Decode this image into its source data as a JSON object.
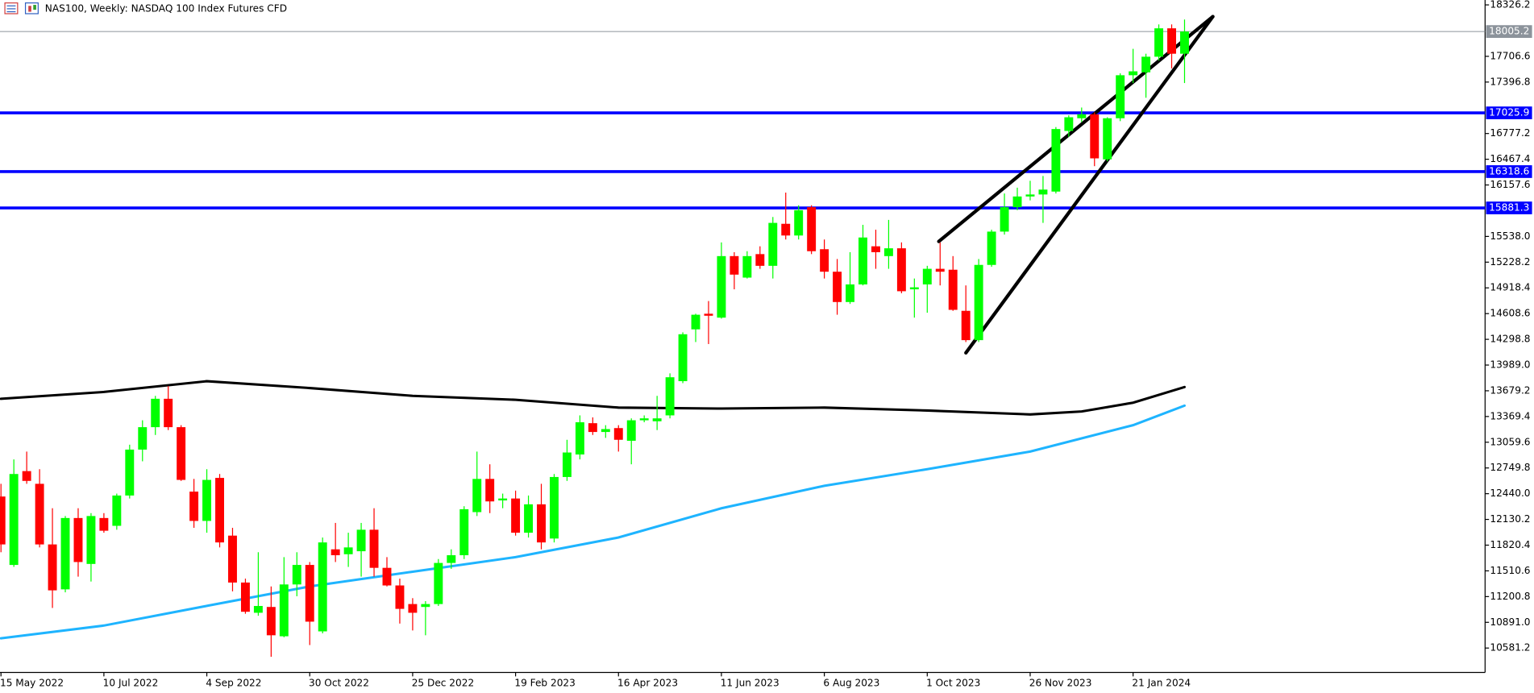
{
  "chart_data": {
    "type": "candlestick",
    "title": "NAS100, Weekly:  NASDAQ 100 Index Futures CFD",
    "categories": [
      "15 May 2022",
      null,
      null,
      null,
      null,
      null,
      null,
      null,
      "10 Jul 2022",
      null,
      null,
      null,
      null,
      null,
      null,
      null,
      "4 Sep 2022",
      null,
      null,
      null,
      null,
      null,
      null,
      null,
      "30 Oct 2022",
      null,
      null,
      null,
      null,
      null,
      null,
      null,
      "25 Dec 2022",
      null,
      null,
      null,
      null,
      null,
      null,
      null,
      "19 Feb 2023",
      null,
      null,
      null,
      null,
      null,
      null,
      null,
      "16 Apr 2023",
      null,
      null,
      null,
      null,
      null,
      null,
      null,
      "11 Jun 2023",
      null,
      null,
      null,
      null,
      null,
      null,
      null,
      "6 Aug 2023",
      null,
      null,
      null,
      null,
      null,
      null,
      null,
      "1 Oct 2023",
      null,
      null,
      null,
      null,
      null,
      null,
      null,
      "26 Nov 2023",
      null,
      null,
      null,
      null,
      null,
      null,
      null,
      "21 Jan 2024",
      null,
      null,
      null,
      null
    ],
    "open": [
      12406,
      11582,
      12712,
      12559,
      11829,
      11288,
      12147,
      11594,
      12147,
      12053,
      12418,
      12971,
      13241,
      13583,
      13241,
      12465,
      12112,
      12630,
      11935,
      11370,
      11006,
      11076,
      10723,
      11347,
      11582,
      10782,
      11770,
      11711,
      11747,
      12006,
      11547,
      11335,
      11111,
      11076,
      11111,
      11606,
      11699,
      12218,
      12618,
      12359,
      12382,
      11970,
      12312,
      11900,
      12641,
      12912,
      13289,
      13183,
      13230,
      13077,
      13324,
      13312,
      13383,
      13795,
      14419,
      14607,
      14560,
      15301,
      15042,
      15325,
      15184,
      15690,
      15549,
      15890,
      15384,
      15113,
      14748,
      14960,
      15419,
      15301,
      15395,
      14901,
      14960,
      15148,
      15137,
      14642,
      14289,
      15195,
      15596,
      15890,
      16019,
      16043,
      16078,
      16808,
      16961,
      17008,
      16466,
      16961,
      17479,
      17514,
      17702,
      18044,
      17738
    ],
    "high": [
      12559,
      12853,
      12947,
      12735,
      12265,
      12171,
      12265,
      12206,
      12206,
      12441,
      13030,
      13324,
      13618,
      13736,
      13265,
      12618,
      12735,
      12677,
      12029,
      11417,
      11735,
      11323,
      11676,
      11735,
      11617,
      11912,
      12088,
      11970,
      12088,
      12265,
      11676,
      11417,
      11182,
      11146,
      11653,
      11770,
      12289,
      12947,
      12794,
      12441,
      12477,
      12418,
      12559,
      12677,
      13089,
      13383,
      13359,
      13265,
      13265,
      13347,
      13383,
      13618,
      13889,
      14383,
      14607,
      14760,
      15466,
      15348,
      15360,
      15419,
      15772,
      16066,
      15913,
      15913,
      15501,
      15266,
      15348,
      15678,
      15619,
      15737,
      15466,
      15031,
      15184,
      15466,
      15301,
      14948,
      15266,
      15619,
      16055,
      16125,
      16208,
      16266,
      16855,
      16996,
      17090,
      17031,
      16973,
      17502,
      17797,
      17738,
      18091,
      18091,
      18150
    ],
    "low": [
      11735,
      11558,
      12559,
      11793,
      11064,
      11252,
      11441,
      11382,
      11970,
      12006,
      12382,
      12830,
      13147,
      13206,
      12594,
      12029,
      11970,
      11793,
      11264,
      10994,
      10970,
      10476,
      10711,
      11205,
      10617,
      10758,
      11617,
      11558,
      11441,
      11441,
      11323,
      10876,
      10793,
      10735,
      11088,
      11535,
      11653,
      12171,
      12206,
      12265,
      11935,
      11912,
      11770,
      11853,
      12594,
      12853,
      13147,
      13112,
      12947,
      12794,
      13300,
      13206,
      13347,
      13771,
      14266,
      14242,
      14548,
      14901,
      15031,
      15148,
      15031,
      15501,
      15501,
      15325,
      15031,
      14595,
      14725,
      14948,
      15148,
      15148,
      14854,
      14560,
      14619,
      14948,
      14642,
      14266,
      14266,
      15172,
      15560,
      15854,
      15972,
      15701,
      16055,
      16737,
      16914,
      16384,
      16443,
      16926,
      17385,
      17208,
      17655,
      17561,
      17385
    ],
    "close": [
      11829,
      12677,
      12594,
      11829,
      11276,
      12147,
      11617,
      12171,
      11994,
      12418,
      12971,
      13241,
      13583,
      13241,
      12606,
      12112,
      12606,
      11853,
      11370,
      11018,
      11088,
      10735,
      11347,
      11582,
      10899,
      11853,
      11699,
      11793,
      12006,
      11547,
      11335,
      11053,
      11006,
      11111,
      11606,
      11699,
      12253,
      12618,
      12347,
      12382,
      11970,
      12312,
      11853,
      12641,
      12936,
      13300,
      13183,
      13218,
      13089,
      13324,
      13347,
      13347,
      13842,
      14360,
      14595,
      14583,
      15301,
      15078,
      15301,
      15184,
      15701,
      15549,
      15854,
      15360,
      15113,
      14748,
      14960,
      15525,
      15348,
      15395,
      14878,
      14925,
      15148,
      15113,
      14654,
      14289,
      15195,
      15596,
      15890,
      16019,
      16043,
      16102,
      16831,
      16973,
      17008,
      16478,
      16961,
      17479,
      17526,
      17702,
      18044,
      17738,
      18005.2
    ],
    "up_color": "#00ff00",
    "down_color": "#ff0000",
    "ylim": [
      10287,
      18385
    ],
    "yticks": [
      18326.2,
      17706.6,
      17396.8,
      16777.2,
      16467.4,
      16157.6,
      {
        "value": 15538,
        "label": "15538.0"
      },
      15228.2,
      14918.4,
      14608.6,
      14298.8,
      {
        "value": 13989,
        "label": "13989.0"
      },
      13679.2,
      13369.4,
      13059.6,
      12749.8,
      {
        "value": 12440,
        "label": "12440.0"
      },
      12130.2,
      11820.4,
      11510.6,
      11200.8,
      {
        "value": 10891,
        "label": "10891.0"
      },
      10581.2
    ],
    "lines": [
      {
        "color": "#000000",
        "x": [
          0,
          8,
          16,
          24,
          32,
          40,
          48,
          56,
          64,
          72,
          80,
          84,
          88,
          92
        ],
        "values": [
          13583,
          13665,
          13795,
          13712,
          13618,
          13571,
          13477,
          13465,
          13477,
          13441,
          13394,
          13430,
          13536,
          13724
        ]
      },
      {
        "color": "#1eb4ff",
        "x": [
          0,
          8,
          16,
          24,
          32,
          40,
          48,
          56,
          64,
          72,
          80,
          88,
          92
        ],
        "values": [
          10699,
          10852,
          11088,
          11323,
          11500,
          11676,
          11912,
          12265,
          12535,
          12735,
          12947,
          13265,
          13500
        ]
      },
      {
        "color": "#000000",
        "x": [
          72.9,
          94.2
        ],
        "values": [
          15478,
          18185
        ]
      },
      {
        "color": "#000000",
        "x": [
          75,
          94.2
        ],
        "values": [
          14136,
          18185
        ]
      }
    ],
    "levels": [
      {
        "value": 17025.9,
        "color": "#0000ff"
      },
      {
        "value": 16318.6,
        "color": "#0000ff"
      },
      {
        "value": 15881.3,
        "color": "#0000ff"
      }
    ],
    "current_price": {
      "value": 18005.2,
      "color": "#8c939b"
    }
  }
}
